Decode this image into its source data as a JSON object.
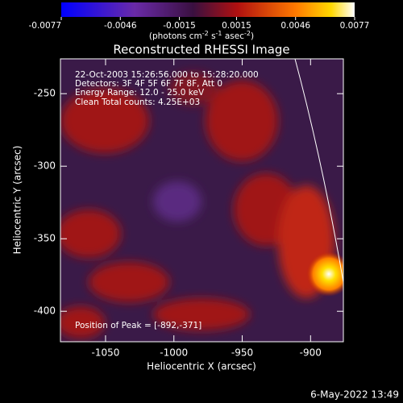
{
  "chart_data": {
    "type": "image",
    "title": "Reconstructed RHESSI Image",
    "x_label": "Heliocentric X (arcsec)",
    "y_label": "Heliocentric Y (arcsec)",
    "xlim": [
      -1083,
      -876
    ],
    "ylim": [
      -421,
      -226
    ],
    "xticks": [
      -1050,
      -1000,
      -950,
      -900
    ],
    "yticks": [
      -400,
      -350,
      -300,
      -250
    ],
    "colorbar": {
      "lim": [
        -0.0077,
        0.0077
      ],
      "ticks": [
        -0.0077,
        -0.0046,
        -0.0015,
        0.0015,
        0.0046,
        0.0077
      ],
      "units_parts": [
        "(photons cm",
        "-2",
        " s",
        "-1",
        " asec",
        "-2",
        ")"
      ]
    },
    "info_lines": [
      "22-Oct-2003 15:26:56.000 to 15:28:20.000",
      "Detectors: 3F 4F 5F 6F 7F 8F, Att 0",
      "Energy Range: 12.0 - 25.0 keV",
      "Clean    Total counts: 4.25E+03"
    ],
    "peak_label": "Position of Peak = [-892,-371]",
    "timestamp": "6-May-2022 13:49"
  }
}
